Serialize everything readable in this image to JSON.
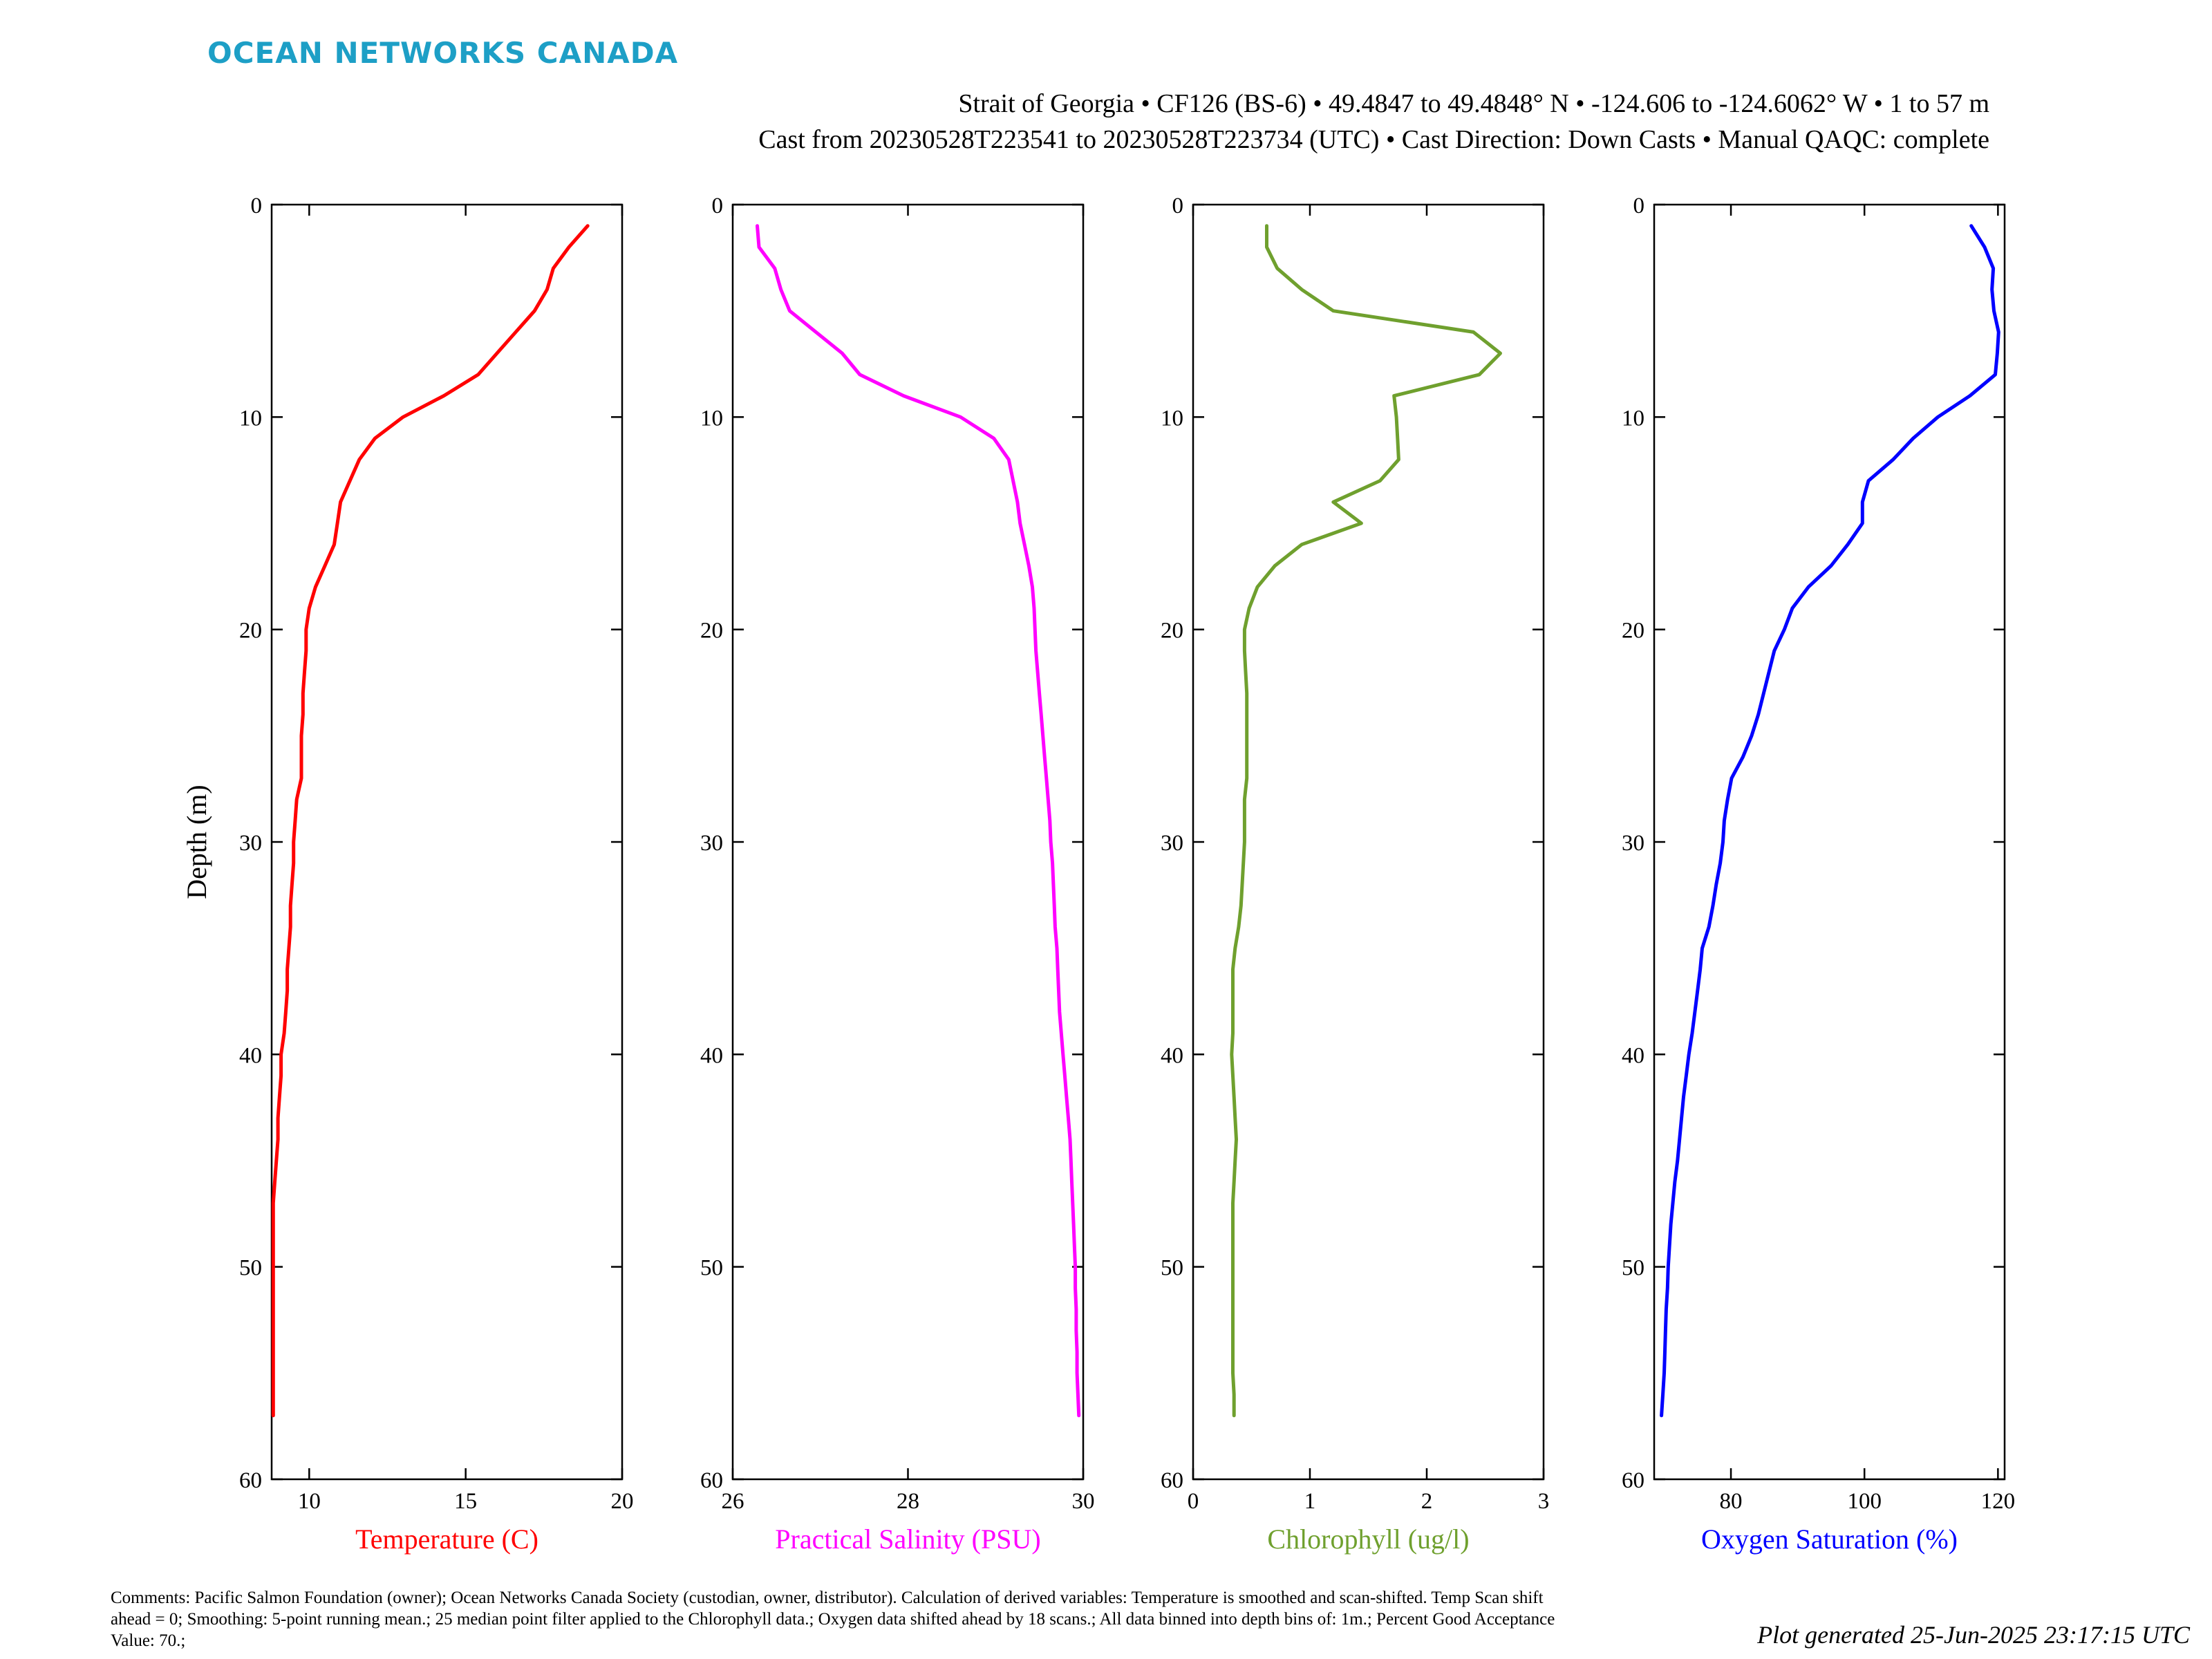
{
  "branding": {
    "logo_text": "OCEAN NETWORKS CANADA",
    "logo_color": "#1d9fc6"
  },
  "header": {
    "line1": "Strait of Georgia • CF126 (BS-6) • 49.4847 to 49.4848° N • -124.606 to -124.6062° W • 1 to 57 m",
    "line2": "Cast from 20230528T223541 to 20230528T223734 (UTC) • Cast Direction: Down Casts • Manual QAQC: complete"
  },
  "footer": {
    "comments": "Comments: Pacific Salmon Foundation (owner); Ocean Networks Canada Society (custodian, owner, distributor). Calculation of derived variables: Temperature is smoothed and scan-shifted. Temp Scan shift ahead = 0; Smoothing: 5-point running mean.; 25 median point filter applied to the Chlorophyll data.; Oxygen data shifted ahead by 18 scans.; All data binned into depth bins of: 1m.; Percent Good Acceptance Value: 70.;",
    "generated": "Plot generated 25-Jun-2025 23:17:15 UTC"
  },
  "chart_data": [
    {
      "type": "line",
      "xlabel": "Temperature (C)",
      "ylabel": "Depth (m)",
      "xlim": [
        8.8,
        20
      ],
      "ylim": [
        0,
        60
      ],
      "y_inverted": true,
      "xticks": [
        10,
        15,
        20
      ],
      "yticks": [
        0,
        10,
        20,
        30,
        40,
        50,
        60
      ],
      "color": "#ff0000",
      "x": [
        18.9,
        18.3,
        17.8,
        17.6,
        17.2,
        16.6,
        16.0,
        15.4,
        14.3,
        13.0,
        12.1,
        11.6,
        11.3,
        11.0,
        10.9,
        10.8,
        10.5,
        10.2,
        10.0,
        9.9,
        9.9,
        9.85,
        9.8,
        9.8,
        9.75,
        9.75,
        9.75,
        9.6,
        9.55,
        9.5,
        9.5,
        9.45,
        9.4,
        9.4,
        9.35,
        9.3,
        9.3,
        9.25,
        9.2,
        9.1,
        9.1,
        9.05,
        9.0,
        9.0,
        8.95,
        8.9,
        8.85,
        8.85,
        8.85,
        8.85,
        8.85,
        8.85,
        8.85,
        8.85,
        8.85,
        8.85,
        8.85
      ],
      "y": [
        1,
        2,
        3,
        4,
        5,
        6,
        7,
        8,
        9,
        10,
        11,
        12,
        13,
        14,
        15,
        16,
        17,
        18,
        19,
        20,
        21,
        22,
        23,
        24,
        25,
        26,
        27,
        28,
        29,
        30,
        31,
        32,
        33,
        34,
        35,
        36,
        37,
        38,
        39,
        40,
        41,
        42,
        43,
        44,
        45,
        46,
        47,
        48,
        49,
        50,
        51,
        52,
        53,
        54,
        55,
        56,
        57
      ]
    },
    {
      "type": "line",
      "xlabel": "Practical Salinity (PSU)",
      "ylabel": "",
      "xlim": [
        26,
        30
      ],
      "ylim": [
        0,
        60
      ],
      "y_inverted": true,
      "xticks": [
        26,
        28,
        30
      ],
      "yticks": [
        0,
        10,
        20,
        30,
        40,
        50,
        60
      ],
      "color": "#ff00ff",
      "x": [
        26.28,
        26.3,
        26.48,
        26.55,
        26.65,
        26.95,
        27.25,
        27.45,
        27.95,
        28.6,
        28.98,
        29.15,
        29.2,
        29.25,
        29.28,
        29.33,
        29.38,
        29.42,
        29.44,
        29.45,
        29.46,
        29.48,
        29.5,
        29.52,
        29.54,
        29.56,
        29.58,
        29.6,
        29.62,
        29.63,
        29.65,
        29.66,
        29.67,
        29.68,
        29.7,
        29.71,
        29.72,
        29.73,
        29.75,
        29.77,
        29.79,
        29.81,
        29.83,
        29.85,
        29.86,
        29.87,
        29.88,
        29.89,
        29.9,
        29.91,
        29.91,
        29.92,
        29.92,
        29.93,
        29.93,
        29.94,
        29.95
      ],
      "y": [
        1,
        2,
        3,
        4,
        5,
        6,
        7,
        8,
        9,
        10,
        11,
        12,
        13,
        14,
        15,
        16,
        17,
        18,
        19,
        20,
        21,
        22,
        23,
        24,
        25,
        26,
        27,
        28,
        29,
        30,
        31,
        32,
        33,
        34,
        35,
        36,
        37,
        38,
        39,
        40,
        41,
        42,
        43,
        44,
        45,
        46,
        47,
        48,
        49,
        50,
        51,
        52,
        53,
        54,
        55,
        56,
        57
      ]
    },
    {
      "type": "line",
      "xlabel": "Chlorophyll (ug/l)",
      "ylabel": "",
      "xlim": [
        0,
        3
      ],
      "ylim": [
        0,
        60
      ],
      "y_inverted": true,
      "xticks": [
        0,
        1,
        2,
        3
      ],
      "yticks": [
        0,
        10,
        20,
        30,
        40,
        50,
        60
      ],
      "color": "#6fa02e",
      "x": [
        0.63,
        0.63,
        0.72,
        0.93,
        1.2,
        2.4,
        2.63,
        2.45,
        1.72,
        1.74,
        1.75,
        1.76,
        1.6,
        1.2,
        1.44,
        0.93,
        0.7,
        0.55,
        0.48,
        0.44,
        0.44,
        0.45,
        0.46,
        0.46,
        0.46,
        0.46,
        0.46,
        0.44,
        0.44,
        0.44,
        0.43,
        0.42,
        0.41,
        0.39,
        0.36,
        0.34,
        0.34,
        0.34,
        0.34,
        0.33,
        0.34,
        0.35,
        0.36,
        0.37,
        0.36,
        0.35,
        0.34,
        0.34,
        0.34,
        0.34,
        0.34,
        0.34,
        0.34,
        0.34,
        0.34,
        0.35,
        0.35
      ],
      "y": [
        1,
        2,
        3,
        4,
        5,
        6,
        7,
        8,
        9,
        10,
        11,
        12,
        13,
        14,
        15,
        16,
        17,
        18,
        19,
        20,
        21,
        22,
        23,
        24,
        25,
        26,
        27,
        28,
        29,
        30,
        31,
        32,
        33,
        34,
        35,
        36,
        37,
        38,
        39,
        40,
        41,
        42,
        43,
        44,
        45,
        46,
        47,
        48,
        49,
        50,
        51,
        52,
        53,
        54,
        55,
        56,
        57
      ]
    },
    {
      "type": "line",
      "xlabel": "Oxygen Saturation (%)",
      "ylabel": "",
      "xlim": [
        68.5,
        121
      ],
      "ylim": [
        0,
        60
      ],
      "y_inverted": true,
      "xticks": [
        80,
        100,
        120
      ],
      "yticks": [
        0,
        10,
        20,
        30,
        40,
        50,
        60
      ],
      "color": "#0000ff",
      "x": [
        116,
        118,
        119.3,
        119.1,
        119.4,
        120.1,
        119.9,
        119.6,
        115.8,
        111.0,
        107.3,
        104.3,
        100.6,
        99.7,
        99.7,
        97.5,
        95.0,
        91.6,
        89.2,
        88.0,
        86.5,
        85.7,
        84.9,
        84.1,
        83.1,
        81.8,
        80.1,
        79.5,
        79.0,
        78.8,
        78.4,
        77.8,
        77.3,
        76.7,
        75.7,
        75.4,
        75.0,
        74.6,
        74.2,
        73.7,
        73.3,
        72.9,
        72.6,
        72.3,
        72.0,
        71.6,
        71.3,
        71.0,
        70.8,
        70.6,
        70.5,
        70.3,
        70.2,
        70.1,
        70.0,
        69.8,
        69.6
      ],
      "y": [
        1,
        2,
        3,
        4,
        5,
        6,
        7,
        8,
        9,
        10,
        11,
        12,
        13,
        14,
        15,
        16,
        17,
        18,
        19,
        20,
        21,
        22,
        23,
        24,
        25,
        26,
        27,
        28,
        29,
        30,
        31,
        32,
        33,
        34,
        35,
        36,
        37,
        38,
        39,
        40,
        41,
        42,
        43,
        44,
        45,
        46,
        47,
        48,
        49,
        50,
        51,
        52,
        53,
        54,
        55,
        56,
        57
      ]
    }
  ]
}
